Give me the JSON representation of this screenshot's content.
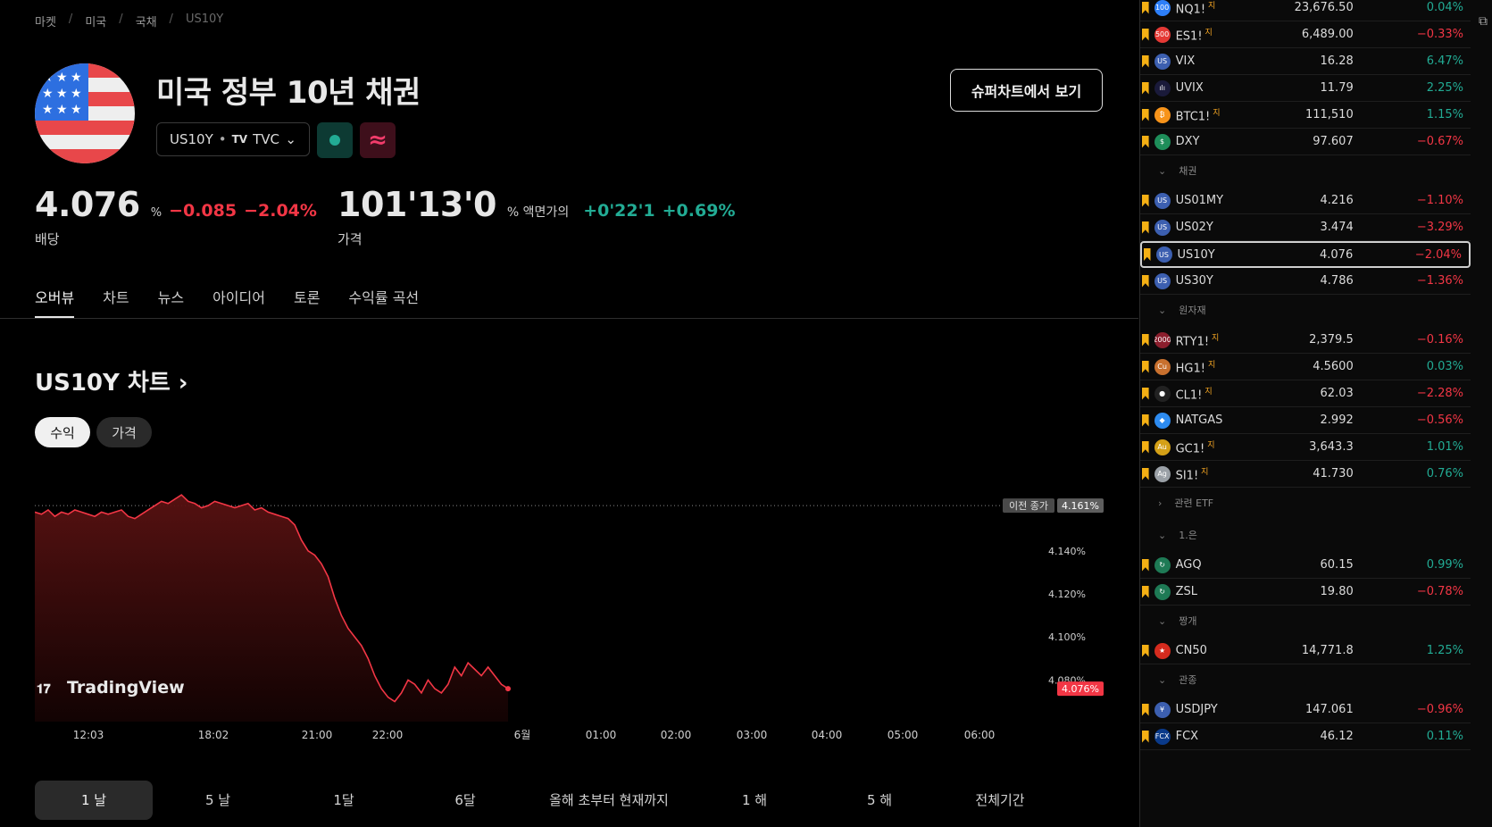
{
  "breadcrumb": [
    "마켓",
    "미국",
    "국채",
    "US10Y"
  ],
  "header": {
    "title": "미국 정부 10년 채권",
    "symbol": "US10Y",
    "exchange": "TVC",
    "super_button": "슈퍼차트에서 보기"
  },
  "yield": {
    "value": "4.076",
    "unit": "%",
    "change": "−0.085",
    "change_pct": "−2.04%",
    "label": "배당"
  },
  "price": {
    "value": "101'13'0",
    "unit": "% 액면가의",
    "change": "+0'22'1",
    "change_pct": "+0.69%",
    "label": "가격"
  },
  "tabs": [
    "오버뷰",
    "차트",
    "뉴스",
    "아이디어",
    "토론",
    "수익률 곡선"
  ],
  "chart_section": {
    "heading": "US10Y 차트",
    "toggle_yield": "수익",
    "toggle_price": "가격",
    "watermark": "TradingView"
  },
  "chart_data": {
    "type": "line",
    "ylabels": [
      "4.140%",
      "4.120%",
      "4.100%",
      "4.080%"
    ],
    "yvalues": [
      4.14,
      4.12,
      4.1,
      4.08
    ],
    "xlabels": [
      "12:03",
      "18:02",
      "21:00",
      "22:00",
      "6월",
      "01:00",
      "02:00",
      "03:00",
      "04:00",
      "05:00",
      "06:00"
    ],
    "prev_close_label": "이전 종가",
    "prev_close": "4.161%",
    "last_label": "4.076%",
    "prev_close_value": 4.161,
    "last_value": 4.076,
    "ylim": [
      4.064,
      4.176
    ],
    "series": [
      {
        "values": [
          4.158,
          4.157,
          4.159,
          4.156,
          4.158,
          4.157,
          4.159,
          4.158,
          4.157,
          4.156,
          4.158,
          4.157,
          4.158,
          4.159,
          4.156,
          4.155,
          4.157,
          4.159,
          4.161,
          4.163,
          4.162,
          4.164,
          4.166,
          4.163,
          4.162,
          4.16,
          4.161,
          4.163,
          4.162,
          4.161,
          4.16,
          4.161,
          4.162,
          4.159,
          4.16,
          4.158,
          4.157,
          4.156,
          4.155,
          4.152,
          4.145,
          4.14,
          4.138,
          4.134,
          4.128,
          4.118,
          4.11,
          4.104,
          4.1,
          4.096,
          4.09,
          4.082,
          4.076,
          4.072,
          4.07,
          4.074,
          4.08,
          4.078,
          4.074,
          4.08,
          4.076,
          4.074,
          4.078,
          4.086,
          4.082,
          4.088,
          4.085,
          4.082,
          4.086,
          4.082,
          4.078,
          4.076
        ]
      }
    ]
  },
  "ranges": [
    "1 날",
    "5 날",
    "1달",
    "6달",
    "올해 초부터 현재까지",
    "1 해",
    "5 해",
    "전체기간"
  ],
  "watchlist": {
    "rows": [
      {
        "sym": "NQ1!",
        "cont": "지",
        "last": "23,676.50",
        "chg": "0.04%",
        "dir": "pos",
        "icon": "100",
        "icolor": "#2d7ff9"
      },
      {
        "sym": "ES1!",
        "cont": "지",
        "last": "6,489.00",
        "chg": "−0.33%",
        "dir": "neg",
        "icon": "500",
        "icolor": "#e53935"
      },
      {
        "sym": "VIX",
        "cont": "",
        "last": "16.28",
        "chg": "6.47%",
        "dir": "pos",
        "icon": "US",
        "icolor": "#3c5fb0"
      },
      {
        "sym": "UVIX",
        "cont": "",
        "last": "11.79",
        "chg": "2.25%",
        "dir": "pos",
        "icon": "ılı",
        "icolor": "#1a1a3a"
      },
      {
        "sym": "BTC1!",
        "cont": "지",
        "last": "111,510",
        "chg": "1.15%",
        "dir": "pos",
        "icon": "₿",
        "icolor": "#f7931a"
      },
      {
        "sym": "DXY",
        "cont": "",
        "last": "97.607",
        "chg": "−0.67%",
        "dir": "neg",
        "icon": "$",
        "icolor": "#1e8e5a"
      }
    ],
    "bonds_label": "채권",
    "bonds": [
      {
        "sym": "US01MY",
        "last": "4.216",
        "chg": "−1.10%",
        "dir": "neg"
      },
      {
        "sym": "US02Y",
        "last": "3.474",
        "chg": "−3.29%",
        "dir": "neg"
      },
      {
        "sym": "US10Y",
        "last": "4.076",
        "chg": "−2.04%",
        "dir": "neg"
      },
      {
        "sym": "US30Y",
        "last": "4.786",
        "chg": "−1.36%",
        "dir": "neg"
      }
    ],
    "commod_label": "원자재",
    "commods": [
      {
        "sym": "RTY1!",
        "cont": "지",
        "last": "2,379.5",
        "chg": "−0.16%",
        "dir": "neg",
        "icon": "2000",
        "icolor": "#8b1e2d"
      },
      {
        "sym": "HG1!",
        "cont": "지",
        "last": "4.5600",
        "chg": "0.03%",
        "dir": "pos",
        "icon": "Cu",
        "icolor": "#c8702e"
      },
      {
        "sym": "CL1!",
        "cont": "지",
        "last": "62.03",
        "chg": "−2.28%",
        "dir": "neg",
        "icon": "●",
        "icolor": "#222"
      },
      {
        "sym": "NATGAS",
        "cont": "",
        "last": "2.992",
        "chg": "−0.56%",
        "dir": "neg",
        "icon": "◆",
        "icolor": "#2d8bf0"
      },
      {
        "sym": "GC1!",
        "cont": "지",
        "last": "3,643.3",
        "chg": "1.01%",
        "dir": "pos",
        "icon": "Au",
        "icolor": "#d4a017"
      },
      {
        "sym": "SI1!",
        "cont": "지",
        "last": "41.730",
        "chg": "0.76%",
        "dir": "pos",
        "icon": "Ag",
        "icolor": "#9aa0a6"
      }
    ],
    "etf_label": "관련 ETF",
    "silver_label": "1.은",
    "silver": [
      {
        "sym": "AGQ",
        "last": "60.15",
        "chg": "0.99%",
        "dir": "pos"
      },
      {
        "sym": "ZSL",
        "last": "19.80",
        "chg": "−0.78%",
        "dir": "neg"
      }
    ],
    "china_label": "짱개",
    "china": [
      {
        "sym": "CN50",
        "last": "14,771.8",
        "chg": "1.25%",
        "dir": "pos"
      }
    ],
    "watch_label": "관종",
    "watch": [
      {
        "sym": "USDJPY",
        "last": "147.061",
        "chg": "−0.96%",
        "dir": "neg"
      },
      {
        "sym": "FCX",
        "last": "46.12",
        "chg": "0.11%",
        "dir": "pos"
      }
    ]
  }
}
